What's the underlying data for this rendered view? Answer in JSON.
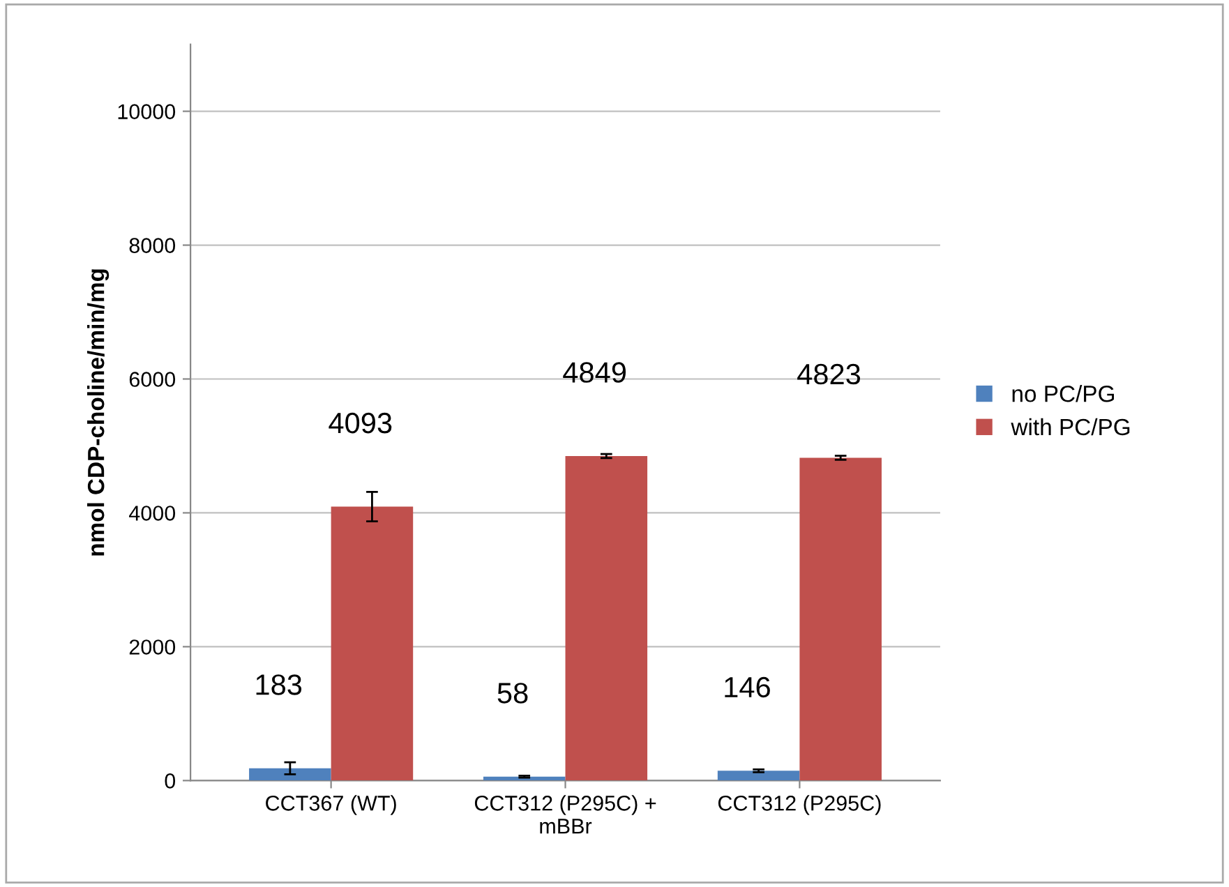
{
  "chart_data": {
    "type": "bar",
    "ylabel": "nmol CDP-choline/min/mg",
    "categories": [
      "CCT367 (WT)",
      "CCT312 (P295C) +\nmBBr",
      "CCT312 (P295C)"
    ],
    "series": [
      {
        "name": "no PC/PG",
        "color": "#4f81bd",
        "values": [
          183,
          58,
          146
        ],
        "errors": [
          90,
          15,
          20
        ]
      },
      {
        "name": "with PC/PG",
        "color": "#c0504d",
        "values": [
          4093,
          4849,
          4823
        ],
        "errors": [
          220,
          30,
          30
        ]
      }
    ],
    "ylim": [
      0,
      11000
    ],
    "yticks": [
      0,
      2000,
      4000,
      6000,
      8000,
      10000
    ],
    "grid": "y",
    "legend": "right",
    "data_labels": true
  }
}
